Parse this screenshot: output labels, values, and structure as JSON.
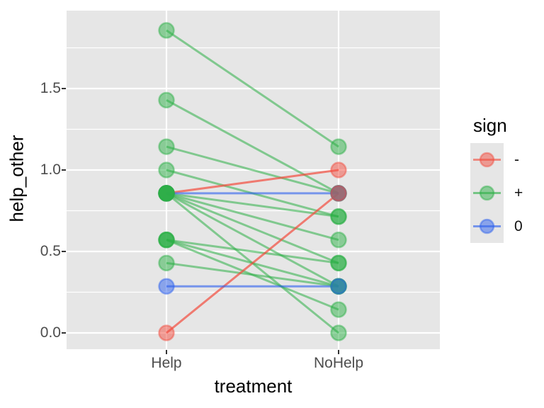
{
  "axes": {
    "x": {
      "title": "treatment",
      "categories": [
        "Help",
        "NoHelp"
      ]
    },
    "y": {
      "title": "help_other",
      "tick_labels": [
        "0.0",
        "0.5",
        "1.0",
        "1.5"
      ]
    }
  },
  "legend": {
    "title": "sign",
    "entries": [
      {
        "label": "-",
        "sign": "-",
        "color": "#F24C3D"
      },
      {
        "label": "+",
        "sign": "+",
        "color": "#2BAF45"
      },
      {
        "label": "0",
        "sign": "0",
        "color": "#2B5FEE"
      }
    ]
  },
  "panel_background": "#E6E6E6",
  "grid_color": "#FFFFFF",
  "chart_data": {
    "type": "scatter",
    "subtype": "paired-slopegraph",
    "title": "",
    "xlabel": "treatment",
    "ylabel": "help_other",
    "x_categories": [
      "Help",
      "NoHelp"
    ],
    "y_ticks": [
      0.0,
      0.5,
      1.0,
      1.5
    ],
    "ylim": [
      -0.1,
      1.98
    ],
    "legend_position": "right",
    "grid": true,
    "series_colors": {
      "-": "#F24C3D",
      "+": "#2BAF45",
      "0": "#2B5FEE"
    },
    "pairs": [
      {
        "help": 1.857,
        "nohelp": 1.143,
        "sign": "+"
      },
      {
        "help": 1.429,
        "nohelp": 0.857,
        "sign": "+"
      },
      {
        "help": 1.143,
        "nohelp": 0.857,
        "sign": "+"
      },
      {
        "help": 1.0,
        "nohelp": 0.714,
        "sign": "+"
      },
      {
        "help": 0.857,
        "nohelp": 1.0,
        "sign": "-"
      },
      {
        "help": 0.857,
        "nohelp": 0.857,
        "sign": "0"
      },
      {
        "help": 0.857,
        "nohelp": 0.714,
        "sign": "+"
      },
      {
        "help": 0.857,
        "nohelp": 0.571,
        "sign": "+"
      },
      {
        "help": 0.857,
        "nohelp": 0.429,
        "sign": "+"
      },
      {
        "help": 0.857,
        "nohelp": 0.286,
        "sign": "+"
      },
      {
        "help": 0.857,
        "nohelp": 0.0,
        "sign": "+"
      },
      {
        "help": 0.571,
        "nohelp": 0.429,
        "sign": "+"
      },
      {
        "help": 0.571,
        "nohelp": 0.286,
        "sign": "+"
      },
      {
        "help": 0.571,
        "nohelp": 0.143,
        "sign": "+"
      },
      {
        "help": 0.429,
        "nohelp": 0.286,
        "sign": "+"
      },
      {
        "help": 0.286,
        "nohelp": 0.286,
        "sign": "0"
      },
      {
        "help": 0.0,
        "nohelp": 0.857,
        "sign": "-"
      }
    ]
  }
}
